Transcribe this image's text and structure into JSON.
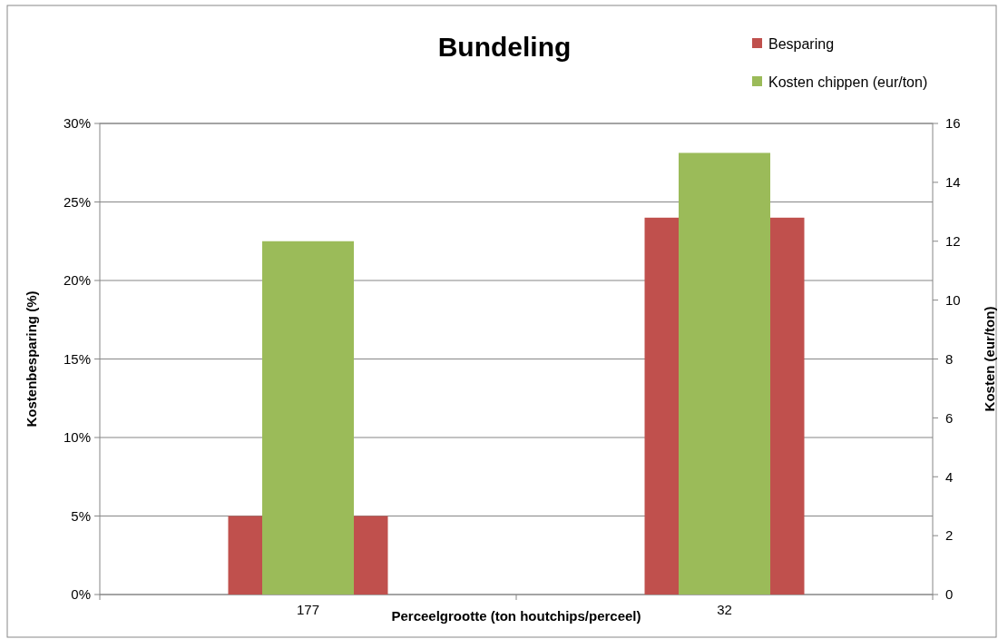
{
  "chart_data": {
    "type": "bar",
    "title": "Bundeling",
    "xlabel": "Perceelgrootte (ton houtchips/perceel)",
    "ylabel": "Kostenbesparing (%)",
    "y2label": "Kosten (eur/ton)",
    "categories": [
      "177",
      "32"
    ],
    "series": [
      {
        "name": "Besparing",
        "color": "#c0504d",
        "values": [
          5,
          24
        ]
      },
      {
        "name": "Kosten chippen (eur/ton)",
        "color": "#9bbb59",
        "values": [
          12,
          15
        ],
        "axis": "y2"
      }
    ],
    "ylim": [
      0,
      30
    ],
    "yticks": [
      {
        "value": 0,
        "label": "0%"
      },
      {
        "value": 5,
        "label": "5%"
      },
      {
        "value": 10,
        "label": "10%"
      },
      {
        "value": 15,
        "label": "15%"
      },
      {
        "value": 20,
        "label": "20%"
      },
      {
        "value": 25,
        "label": "25%"
      },
      {
        "value": 30,
        "label": "30%"
      }
    ],
    "y2lim": [
      0,
      16
    ],
    "y2ticks": [
      0,
      2,
      4,
      6,
      8,
      10,
      12,
      14,
      16
    ],
    "grid": "y",
    "legend": "top right"
  }
}
